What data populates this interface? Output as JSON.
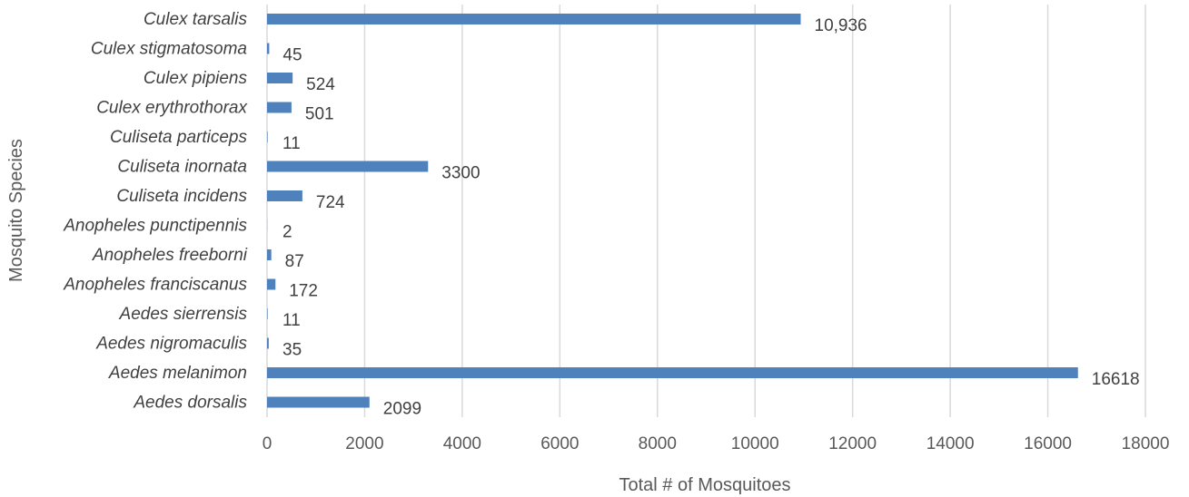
{
  "chart_data": {
    "type": "bar",
    "orientation": "horizontal",
    "title": "",
    "xlabel": "Total # of Mosquitoes",
    "ylabel": "Mosquito Species",
    "xlim": [
      0,
      18000
    ],
    "x_ticks": [
      0,
      2000,
      4000,
      6000,
      8000,
      10000,
      12000,
      14000,
      16000,
      18000
    ],
    "grid": "vertical",
    "legend": "none",
    "bar_color": "#4f81bd",
    "categories": [
      "Culex tarsalis",
      "Culex stigmatosoma",
      "Culex pipiens",
      "Culex erythrothorax",
      "Culiseta particeps",
      "Culiseta inornata",
      "Culiseta incidens",
      "Anopheles punctipennis",
      "Anopheles freeborni",
      "Anopheles franciscanus",
      "Aedes sierrensis",
      "Aedes nigromaculis",
      "Aedes melanimon",
      "Aedes dorsalis"
    ],
    "values": [
      10936,
      45,
      524,
      501,
      11,
      3300,
      724,
      2,
      87,
      172,
      11,
      35,
      16618,
      2099
    ],
    "data_labels": [
      "10,936",
      "45",
      "524",
      "501",
      "11",
      "3300",
      "724",
      "2",
      "87",
      "172",
      "11",
      "35",
      "16618",
      "2099"
    ]
  }
}
